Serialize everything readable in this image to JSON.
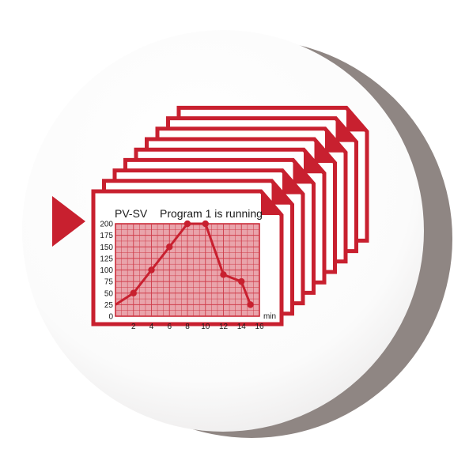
{
  "chart_data": {
    "type": "line",
    "title": "PV-SV",
    "status_text": "Program 1 is running",
    "x_unit": "min",
    "x": [
      0,
      2,
      4,
      6,
      8,
      10,
      12,
      14,
      15
    ],
    "y": [
      25,
      50,
      100,
      150,
      200,
      200,
      90,
      75,
      25
    ],
    "xlim": [
      0,
      16
    ],
    "ylim": [
      0,
      200
    ],
    "x_ticks": [
      2,
      4,
      6,
      8,
      10,
      12,
      14,
      16
    ],
    "y_ticks": [
      0,
      25,
      50,
      75,
      100,
      125,
      150,
      175,
      200
    ],
    "grid": true,
    "colors": {
      "accent": "#c8202f",
      "plot_fill": "#e9a4ab",
      "grid": "#cf3c4a",
      "circle_bg": "#ffffff",
      "shadow": "#8f8683"
    },
    "stacked_pages": 9,
    "arrow_icon": "play-arrow-icon"
  }
}
